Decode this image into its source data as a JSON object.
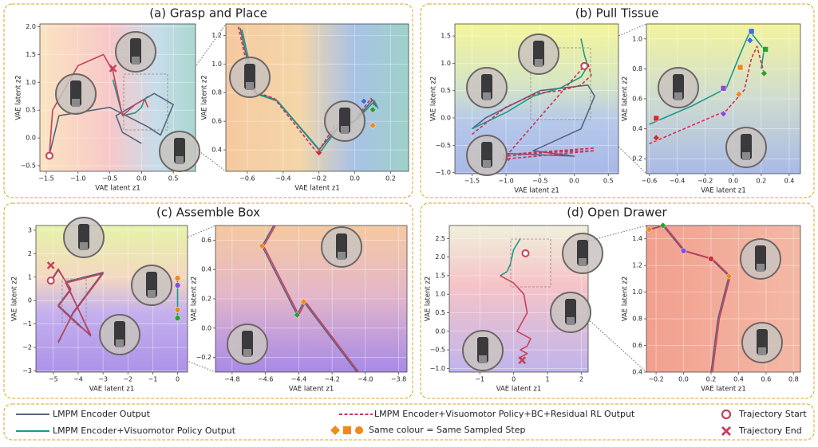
{
  "chart_data": [
    {
      "type": "line",
      "title": "(a) Grasp and Place",
      "xlabel": "VAE latent z1",
      "ylabel": "VAE latent z2",
      "xlim": [
        -1.6,
        0.85
      ],
      "xticks": [
        {
          "value": -1.5,
          "label": "−1.5"
        },
        {
          "value": -1.0,
          "label": "−1.0"
        },
        {
          "value": -0.5,
          "label": "−0.5"
        },
        {
          "value": 0.0,
          "label": "0.0"
        },
        0.5
      ],
      "ylim": [
        -0.6,
        2.05
      ],
      "yticks": [
        {
          "value": -0.5,
          "label": "−0.5"
        },
        {
          "value": 0.0,
          "label": "0.0"
        },
        0.5,
        {
          "value": 1.0,
          "label": "1.0"
        },
        1.5,
        {
          "value": 2.0,
          "label": "2.0"
        }
      ],
      "series": [
        {
          "color": "#56637f",
          "dash": false,
          "x": [
            -1.45,
            -1.3,
            -0.5,
            0.1,
            0.3,
            0.5,
            0.2,
            -0.4,
            -0.3,
            0.0
          ],
          "values": [
            -0.3,
            0.4,
            0.55,
            0.2,
            0.05,
            0.6,
            0.8,
            0.4,
            0.1,
            -0.1
          ]
        },
        {
          "color": "#1a9a8a",
          "dash": false,
          "x": [
            -0.45,
            -0.3,
            -0.1,
            0.0,
            0.05,
            0.1
          ],
          "values": [
            1.05,
            0.4,
            0.45,
            0.55,
            0.7,
            0.75
          ]
        },
        {
          "color": "#c8405a",
          "dash": false,
          "x": [
            -1.45,
            -1.4,
            -1.0,
            -0.6,
            -0.45,
            -0.3,
            -0.1,
            0.05,
            0.1
          ],
          "values": [
            -0.3,
            0.5,
            1.3,
            1.5,
            1.2,
            0.4,
            0.6,
            0.7,
            0.55
          ]
        }
      ],
      "points": [
        {
          "x": -1.45,
          "y": -0.32,
          "color": "#c8405a",
          "shape": "ring"
        },
        {
          "x": -0.45,
          "y": 1.25,
          "color": "#c8405a",
          "shape": "cross"
        }
      ]
    },
    {
      "type": "line",
      "xlabel": "VAE latent z1",
      "ylabel": "VAE latent z2",
      "xlim": [
        -0.72,
        0.3
      ],
      "xticks": [
        {
          "value": -0.6,
          "label": "−0.6"
        },
        {
          "value": -0.4,
          "label": "−0.4"
        },
        {
          "value": -0.2,
          "label": "−0.2"
        },
        {
          "value": 0.0,
          "label": "0.0"
        },
        0.2
      ],
      "ylim": [
        0.25,
        1.28
      ],
      "yticks": [
        0.4,
        0.6,
        0.8,
        {
          "value": 1.0,
          "label": "1.0"
        },
        1.2
      ],
      "series": [
        {
          "color": "#56637f",
          "dash": false,
          "x": [
            -0.64,
            -0.56,
            -0.44,
            -0.2,
            -0.1,
            0.0,
            0.1,
            0.12
          ],
          "values": [
            1.25,
            0.8,
            0.75,
            0.4,
            0.55,
            0.6,
            0.75,
            0.7
          ]
        },
        {
          "color": "#1a9a8a",
          "dash": false,
          "x": [
            -0.63,
            -0.55,
            -0.43,
            -0.19,
            -0.09,
            0.01,
            0.11,
            0.13
          ],
          "values": [
            1.24,
            0.79,
            0.74,
            0.39,
            0.56,
            0.61,
            0.74,
            0.69
          ]
        },
        {
          "color": "#d03050",
          "dash": true,
          "x": [
            -0.65,
            -0.57,
            -0.45,
            -0.21,
            -0.11,
            -0.01,
            0.09,
            0.11
          ],
          "values": [
            1.26,
            0.81,
            0.76,
            0.38,
            0.57,
            0.59,
            0.76,
            0.71
          ]
        }
      ],
      "points": [
        {
          "x": -0.2,
          "y": 0.38,
          "color": "#d03030",
          "shape": "diamond"
        },
        {
          "x": -0.08,
          "y": 0.58,
          "color": "#8a4ad8",
          "shape": "diamond"
        },
        {
          "x": 0.1,
          "y": 0.57,
          "color": "#f08a1c",
          "shape": "diamond"
        },
        {
          "x": 0.1,
          "y": 0.68,
          "color": "#2ca02c",
          "shape": "diamond"
        },
        {
          "x": 0.05,
          "y": 0.74,
          "color": "#3a6fd8",
          "shape": "diamond"
        }
      ]
    },
    {
      "type": "line",
      "title": "(b) Pull Tissue",
      "xlabel": "VAE latent z1",
      "ylabel": "VAE latent z2",
      "xlim": [
        -1.75,
        0.65
      ],
      "xticks": [
        {
          "value": -1.5,
          "label": "−1.5"
        },
        {
          "value": -1.0,
          "label": "−1.0"
        },
        {
          "value": -0.5,
          "label": "−0.5"
        },
        {
          "value": 0.0,
          "label": "0.0"
        },
        0.5
      ],
      "ylim": [
        -1.02,
        1.72
      ],
      "yticks": [
        {
          "value": -1.0,
          "label": "−1.0"
        },
        {
          "value": -0.5,
          "label": "−0.5"
        },
        {
          "value": 0.0,
          "label": "0.0"
        },
        0.5,
        {
          "value": 1.0,
          "label": "1.0"
        },
        1.5
      ],
      "series": [
        {
          "color": "#56637f",
          "dash": false,
          "x": [
            -1.5,
            -1.3,
            -0.5,
            0.2,
            0.3,
            0.1,
            -0.6,
            0.0,
            -1.0
          ],
          "values": [
            -0.2,
            0.0,
            0.5,
            0.6,
            0.4,
            -0.2,
            -0.6,
            -0.7,
            -0.65
          ]
        },
        {
          "color": "#1a9a8a",
          "dash": false,
          "x": [
            -1.5,
            -1.0,
            -0.6,
            -0.2,
            0.1,
            0.2,
            0.15,
            0.1
          ],
          "values": [
            -0.2,
            0.1,
            0.4,
            0.55,
            0.75,
            0.95,
            1.15,
            1.45
          ]
        },
        {
          "color": "#d03050",
          "dash": true,
          "x": [
            -1.5,
            -1.0,
            -0.55,
            -0.2,
            0.1,
            0.25,
            0.2,
            0.15,
            -1.0,
            0.3,
            -0.8,
            0.3,
            -1.0
          ],
          "values": [
            -0.3,
            0.2,
            0.45,
            0.5,
            0.6,
            0.78,
            1.0,
            0.95,
            -0.7,
            -0.55,
            -0.65,
            -0.6,
            -0.75
          ]
        }
      ],
      "points": [
        {
          "x": 0.15,
          "y": 0.95,
          "color": "#c8405a",
          "shape": "ring"
        },
        {
          "x": -1.0,
          "y": -0.72,
          "color": "#c8405a",
          "shape": "cross"
        }
      ]
    },
    {
      "type": "line",
      "xlabel": "VAE latent z1",
      "ylabel": "VAE latent z2",
      "xlim": [
        -0.62,
        0.48
      ],
      "xticks": [
        {
          "value": -0.6,
          "label": "−0.6"
        },
        {
          "value": -0.4,
          "label": "−0.4"
        },
        {
          "value": -0.2,
          "label": "−0.2"
        },
        {
          "value": 0.0,
          "label": "0.0"
        },
        0.2,
        0.4
      ],
      "ylim": [
        0.1,
        1.1
      ],
      "yticks": [
        0.2,
        0.4,
        0.6,
        0.8,
        {
          "value": 1.0,
          "label": "1.0"
        }
      ],
      "series": [
        {
          "color": "#1a9a8a",
          "dash": false,
          "x": [
            -0.6,
            -0.3,
            -0.05,
            0.05,
            0.12,
            0.22,
            0.2
          ],
          "values": [
            0.43,
            0.55,
            0.67,
            0.9,
            1.05,
            0.93,
            0.8
          ]
        },
        {
          "color": "#d03050",
          "dash": true,
          "x": [
            -0.6,
            -0.3,
            -0.05,
            0.08,
            0.13,
            0.17,
            0.22
          ],
          "values": [
            0.3,
            0.42,
            0.52,
            0.66,
            0.87,
            0.95,
            0.77
          ]
        }
      ],
      "points": [
        {
          "x": -0.55,
          "y": 0.47,
          "color": "#d03030",
          "shape": "square"
        },
        {
          "x": -0.55,
          "y": 0.34,
          "color": "#d03030",
          "shape": "diamond"
        },
        {
          "x": -0.07,
          "y": 0.67,
          "color": "#8a4ad8",
          "shape": "square"
        },
        {
          "x": -0.07,
          "y": 0.5,
          "color": "#8a4ad8",
          "shape": "diamond"
        },
        {
          "x": 0.05,
          "y": 0.81,
          "color": "#f08a1c",
          "shape": "square"
        },
        {
          "x": 0.04,
          "y": 0.63,
          "color": "#f08a1c",
          "shape": "diamond"
        },
        {
          "x": 0.23,
          "y": 0.93,
          "color": "#2ca02c",
          "shape": "square"
        },
        {
          "x": 0.22,
          "y": 0.77,
          "color": "#2ca02c",
          "shape": "diamond"
        },
        {
          "x": 0.13,
          "y": 1.05,
          "color": "#3a6fd8",
          "shape": "square"
        },
        {
          "x": 0.12,
          "y": 0.99,
          "color": "#3a6fd8",
          "shape": "diamond"
        }
      ]
    },
    {
      "type": "line",
      "title": "(c) Assemble Box",
      "xlabel": "VAE latent z1",
      "ylabel": "VAE latent z2",
      "xlim": [
        -5.7,
        0.4
      ],
      "xticks": [
        {
          "value": -5,
          "label": "−5"
        },
        {
          "value": -4,
          "label": "−4"
        },
        {
          "value": -3,
          "label": "−3"
        },
        {
          "value": -2,
          "label": "−2"
        },
        {
          "value": -1,
          "label": "−1"
        },
        0
      ],
      "ylim": [
        -3.05,
        3.2
      ],
      "yticks": [
        {
          "value": -3,
          "label": "−3"
        },
        {
          "value": -2,
          "label": "−2"
        },
        {
          "value": -1,
          "label": "−1"
        },
        0,
        1,
        2,
        3
      ],
      "series": [
        {
          "color": "#56637f",
          "dash": false,
          "x": [
            -5.1,
            -4.8,
            -4.3,
            -4.8,
            -4.0,
            -3.5,
            -4.5,
            -3.0,
            -4.2,
            -4.8
          ],
          "values": [
            0.8,
            1.3,
            0.5,
            -0.2,
            -1.0,
            -1.5,
            0.8,
            1.2,
            -0.5,
            -1.8
          ]
        },
        {
          "color": "#1a9a8a",
          "dash": false,
          "x": [
            0.0,
            0.0
          ],
          "values": [
            1.0,
            -0.8
          ]
        },
        {
          "color": "#c8405a",
          "dash": false,
          "x": [
            -5.1,
            -4.8,
            -4.3,
            -4.8,
            -4.0,
            -3.5,
            -4.5,
            -3.0,
            -4.2,
            -4.8
          ],
          "values": [
            0.85,
            1.35,
            0.45,
            -0.25,
            -1.05,
            -1.45,
            0.75,
            1.15,
            -0.55,
            -1.75
          ]
        }
      ],
      "points": [
        {
          "x": -5.1,
          "y": 0.85,
          "color": "#c8405a",
          "shape": "ring"
        },
        {
          "x": -5.1,
          "y": 1.5,
          "color": "#c8405a",
          "shape": "cross"
        },
        {
          "x": 0,
          "y": 0.95,
          "color": "#f08a1c",
          "shape": "circle"
        },
        {
          "x": 0,
          "y": 0.65,
          "color": "#8a4ad8",
          "shape": "circle"
        },
        {
          "x": 0,
          "y": -0.4,
          "color": "#f08a1c",
          "shape": "circle"
        },
        {
          "x": 0,
          "y": -0.75,
          "color": "#2ca02c",
          "shape": "circle"
        }
      ]
    },
    {
      "type": "line",
      "xlabel": "VAE latent z1",
      "ylabel": "VAE latent z2",
      "xlim": [
        -4.9,
        -3.75
      ],
      "xticks": [
        {
          "value": -4.8,
          "label": "−4.8"
        },
        {
          "value": -4.6,
          "label": "−4.6"
        },
        {
          "value": -4.4,
          "label": "−4.4"
        },
        {
          "value": -4.2,
          "label": "−4.2"
        },
        {
          "value": -4.0,
          "label": "−4.0"
        },
        {
          "value": -3.8,
          "label": "−3.8"
        }
      ],
      "ylim": [
        -0.3,
        0.7
      ],
      "yticks": [
        {
          "value": -0.2,
          "label": "−0.2"
        },
        {
          "value": 0.0,
          "label": "0.0"
        },
        0.2,
        0.4,
        0.6
      ],
      "series": [
        {
          "color": "#56637f",
          "dash": false,
          "x": [
            -4.55,
            -4.62,
            -4.41,
            -4.37,
            -4.05
          ],
          "values": [
            0.7,
            0.56,
            0.09,
            0.18,
            -0.3
          ]
        },
        {
          "color": "#c8405a",
          "dash": false,
          "x": [
            -4.54,
            -4.61,
            -4.4,
            -4.36,
            -4.04
          ],
          "values": [
            0.7,
            0.56,
            0.09,
            0.18,
            -0.3
          ]
        }
      ],
      "points": [
        {
          "x": -4.62,
          "y": 0.56,
          "color": "#f08a1c",
          "shape": "diamond"
        },
        {
          "x": -4.37,
          "y": 0.18,
          "color": "#f08a1c",
          "shape": "diamond"
        },
        {
          "x": -4.41,
          "y": 0.09,
          "color": "#2ca02c",
          "shape": "diamond"
        }
      ]
    },
    {
      "type": "line",
      "title": "(d) Open Drawer",
      "xlabel": "VAE latent z1",
      "ylabel": "VAE latent z2",
      "xlim": [
        -1.9,
        2.2
      ],
      "xticks": [
        {
          "value": -1,
          "label": "−1"
        },
        0,
        1,
        2
      ],
      "ylim": [
        -1.1,
        2.85
      ],
      "yticks": [
        {
          "value": -1.0,
          "label": "−1.0"
        },
        {
          "value": -0.5,
          "label": "−0.5"
        },
        {
          "value": 0.0,
          "label": "0.0"
        },
        0.5,
        {
          "value": 1.0,
          "label": "1.0"
        },
        1.5,
        {
          "value": 2.0,
          "label": "2.0"
        },
        2.5
      ],
      "series": [
        {
          "color": "#1a9a8a",
          "dash": false,
          "x": [
            0.2,
            0.0,
            -0.1,
            -0.2,
            -0.4
          ],
          "values": [
            2.5,
            2.2,
            1.8,
            1.6,
            1.5
          ]
        },
        {
          "color": "#c8405a",
          "dash": false,
          "x": [
            -0.4,
            0.0,
            0.3,
            0.4,
            0.1,
            0.5,
            0.4,
            0.2,
            0.4,
            0.2,
            0.3
          ],
          "values": [
            1.5,
            1.3,
            1.0,
            0.5,
            0.0,
            -0.2,
            -0.4,
            -0.5,
            -0.6,
            -0.7,
            -0.8
          ]
        }
      ],
      "points": [
        {
          "x": 0.35,
          "y": 2.1,
          "color": "#c8405a",
          "shape": "ring"
        },
        {
          "x": 0.25,
          "y": -0.78,
          "color": "#c8405a",
          "shape": "cross"
        }
      ]
    },
    {
      "type": "line",
      "xlabel": "VAE latent z1",
      "ylabel": "VAE latent z2",
      "xlim": [
        -0.27,
        0.85
      ],
      "xticks": [
        {
          "value": -0.2,
          "label": "−0.2"
        },
        {
          "value": 0.0,
          "label": "0.0"
        },
        0.2,
        0.4,
        0.6,
        0.8
      ],
      "ylim": [
        0.4,
        1.5
      ],
      "yticks": [
        0.4,
        0.6,
        0.8,
        {
          "value": 1.0,
          "label": "1.0"
        },
        1.2,
        1.4
      ],
      "series": [
        {
          "color": "#56637f",
          "dash": false,
          "x": [
            -0.25,
            -0.15,
            0.0,
            0.2,
            0.33,
            0.25,
            0.2
          ],
          "values": [
            1.47,
            1.5,
            1.31,
            1.25,
            1.12,
            0.8,
            0.4
          ]
        },
        {
          "color": "#c8405a",
          "dash": false,
          "x": [
            -0.24,
            -0.14,
            0.01,
            0.21,
            0.34,
            0.26,
            0.21
          ],
          "values": [
            1.47,
            1.5,
            1.31,
            1.25,
            1.12,
            0.8,
            0.4
          ]
        }
      ],
      "points": [
        {
          "x": -0.25,
          "y": 1.47,
          "color": "#f08a1c",
          "shape": "diamond"
        },
        {
          "x": -0.15,
          "y": 1.5,
          "color": "#2ca02c",
          "shape": "diamond"
        },
        {
          "x": 0.0,
          "y": 1.31,
          "color": "#8a4ad8",
          "shape": "circle"
        },
        {
          "x": 0.2,
          "y": 1.25,
          "color": "#d03030",
          "shape": "circle"
        },
        {
          "x": 0.33,
          "y": 1.12,
          "color": "#f08a1c",
          "shape": "diamond"
        }
      ]
    }
  ],
  "legend": [
    {
      "label": "LMPM Encoder Output",
      "color": "#56637f",
      "dash": false
    },
    {
      "label": "LMPM Encoder+Visuomotor Policy Output",
      "color": "#1a9a8a",
      "dash": false
    },
    {
      "label": "LMPM Encoder+Visuomotor Policy+BC+Residual RL Output",
      "color": "#d03050",
      "dash": true
    },
    {
      "label": "Same colour = Same Sampled Step",
      "color": "#f08a1c"
    },
    {
      "label": "Trajectory Start",
      "color": "#c8405a"
    },
    {
      "label": "Trajectory End",
      "color": "#c8405a"
    }
  ]
}
